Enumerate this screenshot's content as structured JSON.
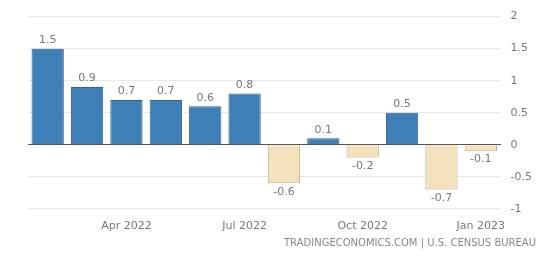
{
  "chart_data": {
    "type": "bar",
    "categories": [
      null,
      null,
      "Apr 2022",
      null,
      null,
      "Jul 2022",
      null,
      null,
      "Oct 2022",
      null,
      null,
      "Jan 2023"
    ],
    "values": [
      1.5,
      0.9,
      0.7,
      0.7,
      0.6,
      0.8,
      -0.6,
      0.1,
      -0.2,
      0.5,
      -0.7,
      -0.1
    ],
    "colors": [
      "#3f7fb8",
      "#3f7fb8",
      "#3f7fb8",
      "#3f7fb8",
      "#3f7fb8",
      "#3f7fb8",
      "#f3e2bb",
      "#3f7fb8",
      "#f3e2bb",
      "#3f7fb8",
      "#f3e2bb",
      "#f3e2bb"
    ],
    "ylim": [
      -1,
      2
    ],
    "yticks": [
      -1,
      -0.5,
      0,
      0.5,
      1,
      1.5,
      2
    ],
    "grid": true,
    "data_labels": true,
    "annotations": [
      "TRADINGECONOMICS.COM | U.S. CENSUS BUREAU"
    ]
  }
}
